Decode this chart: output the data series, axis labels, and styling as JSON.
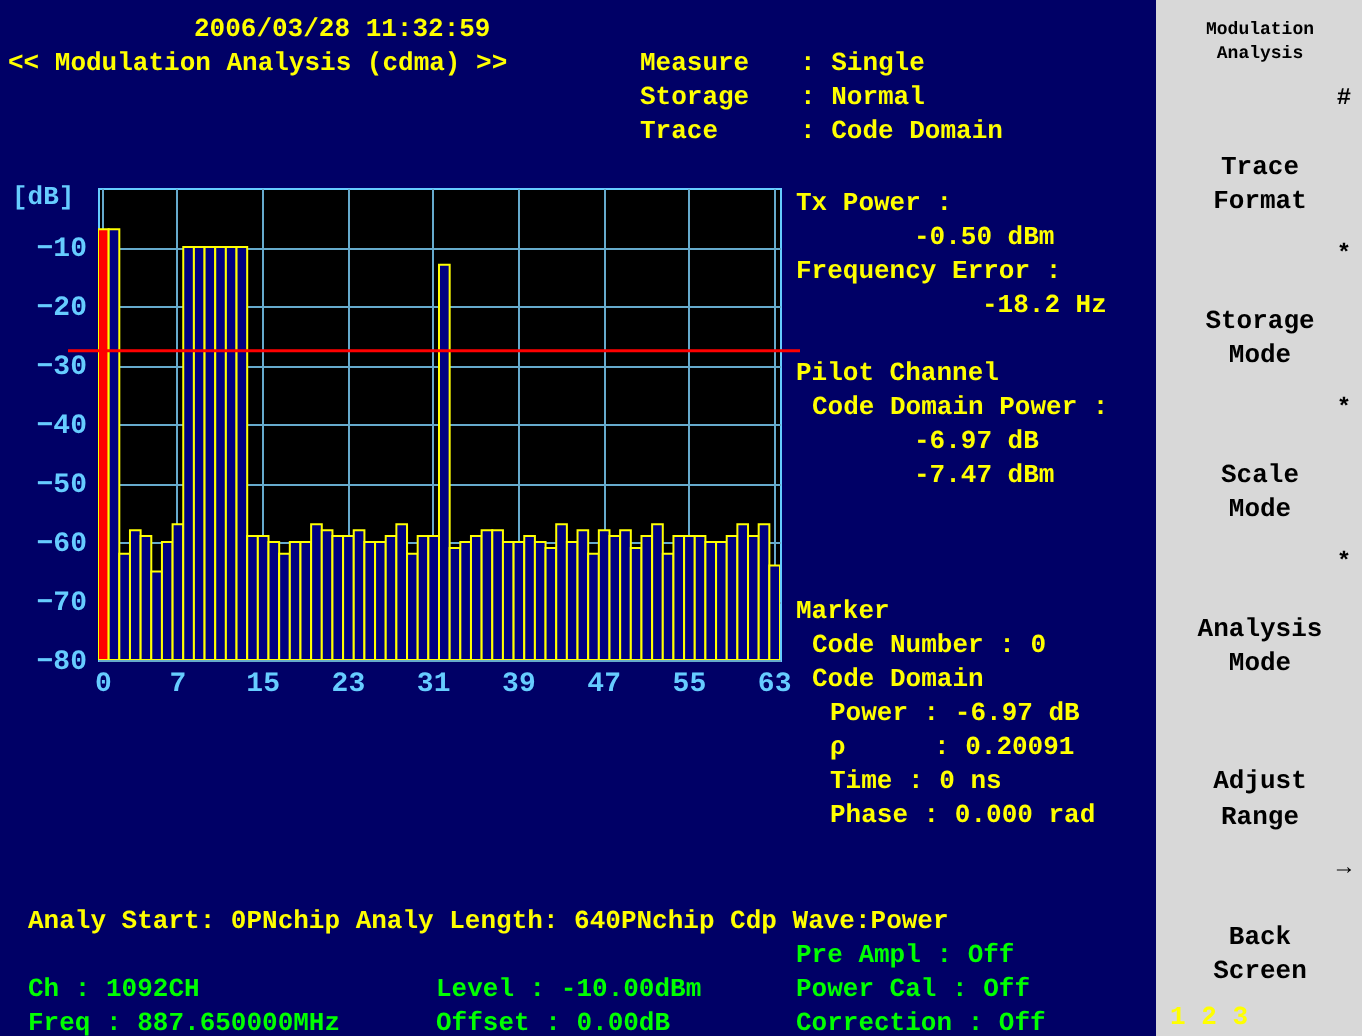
{
  "chart_data": {
    "type": "bar",
    "title": "<< Modulation Analysis (cdma) >>",
    "ylabel": "[dB]",
    "categories": [
      "0",
      null,
      null,
      null,
      null,
      null,
      null,
      "7",
      null,
      null,
      null,
      null,
      null,
      null,
      null,
      "15",
      null,
      null,
      null,
      null,
      null,
      null,
      null,
      "23",
      null,
      null,
      null,
      null,
      null,
      null,
      null,
      "31",
      null,
      null,
      null,
      null,
      null,
      null,
      null,
      "39",
      null,
      null,
      null,
      null,
      null,
      null,
      null,
      "47",
      null,
      null,
      null,
      null,
      null,
      null,
      null,
      "55",
      null,
      null,
      null,
      null,
      null,
      null,
      null,
      "63"
    ],
    "values": [
      73,
      73,
      18,
      22,
      21,
      15,
      20,
      23,
      70,
      70,
      70,
      70,
      70,
      70,
      21,
      21,
      20,
      18,
      20,
      20,
      23,
      22,
      21,
      21,
      22,
      20,
      20,
      21,
      23,
      18,
      21,
      21,
      67,
      19,
      20,
      21,
      22,
      22,
      20,
      20,
      21,
      20,
      19,
      23,
      20,
      22,
      18,
      22,
      21,
      22,
      19,
      21,
      23,
      18,
      21,
      21,
      21,
      20,
      20,
      21,
      23,
      21,
      23,
      16
    ],
    "colors": [
      "#ff0000",
      "#000080",
      "#000080",
      "#000080",
      "#000080",
      "#000080",
      "#000080",
      "#000080",
      "#000080",
      "#000080",
      "#000080",
      "#000080",
      "#000080",
      "#000080",
      "#000080",
      "#000080",
      "#000080",
      "#000080",
      "#000080",
      "#000080",
      "#000080",
      "#000080",
      "#000080",
      "#000080",
      "#000080",
      "#000080",
      "#000080",
      "#000080",
      "#000080",
      "#000080",
      "#000080",
      "#000080",
      "#000080",
      "#000080",
      "#000080",
      "#000080",
      "#000080",
      "#000080",
      "#000080",
      "#000080",
      "#000080",
      "#000080",
      "#000080",
      "#000080",
      "#000080",
      "#000080",
      "#000080",
      "#000080",
      "#000080",
      "#000080",
      "#000080",
      "#000080",
      "#000080",
      "#000080",
      "#000080",
      "#000080",
      "#000080",
      "#000080",
      "#000080",
      "#000080",
      "#000080",
      "#000080",
      "#000080",
      "#000080"
    ],
    "base": [
      -80,
      -80,
      -80,
      -80,
      -80,
      -80,
      -80,
      -80,
      -80,
      -80,
      -80,
      -80,
      -80,
      -80,
      -80,
      -80,
      -80,
      -80,
      -80,
      -80,
      -80,
      -80,
      -80,
      -80,
      -80,
      -80,
      -80,
      -80,
      -80,
      -80,
      -80,
      -80,
      -80,
      -80,
      -80,
      -80,
      -80,
      -80,
      -80,
      -80,
      -80,
      -80,
      -80,
      -80,
      -80,
      -80,
      -80,
      -80,
      -80,
      -80,
      -80,
      -80,
      -80,
      -80,
      -80,
      -80,
      -80,
      -80,
      -80,
      -80,
      -80,
      -80,
      -80,
      -80
    ],
    "ylim": [
      -80,
      0
    ],
    "yticks": [
      -80,
      -70,
      -60,
      -50,
      -40,
      -30,
      -20,
      -10
    ],
    "grid": true,
    "ref_lines": [
      {
        "axis": "y",
        "value": -27.6,
        "color": "#ff0000"
      }
    ],
    "annotations": [
      "2006/03/28   11:32:59",
      "Measure",
      ": Single",
      "Storage",
      ": Normal",
      "Trace",
      ": Code Domain",
      "Tx Power :",
      "-0.50 dBm",
      "Frequency Error :",
      "-18.2 Hz",
      "Pilot Channel",
      "Code Domain Power :",
      "-6.97 dB",
      "-7.47 dBm",
      "Marker",
      "Code Number :    0",
      "Code Domain",
      "Power :   -6.97 dB",
      "ρ",
      ": 0.20091",
      "Time  :         0 ns",
      "Phase :   0.000 rad",
      "Analy Start:     0PNchip  Analy Length: 640PNchip  Cdp Wave:Power",
      "Pre Ampl   : Off",
      "Ch   :         1092CH",
      "Level  : -10.00dBm",
      "Power Cal  : Off",
      "Freq :  887.650000MHz",
      "Offset :    0.00dB",
      "Correction : Off",
      "Modulation",
      "Analysis",
      "#",
      "Trace",
      "Format",
      "*",
      "Storage",
      "Mode",
      "*",
      "Scale",
      "Mode",
      "*",
      "Analysis",
      "Mode",
      "Adjust",
      "Range",
      "→",
      "Back",
      "Screen",
      "1 2 3"
    ]
  }
}
